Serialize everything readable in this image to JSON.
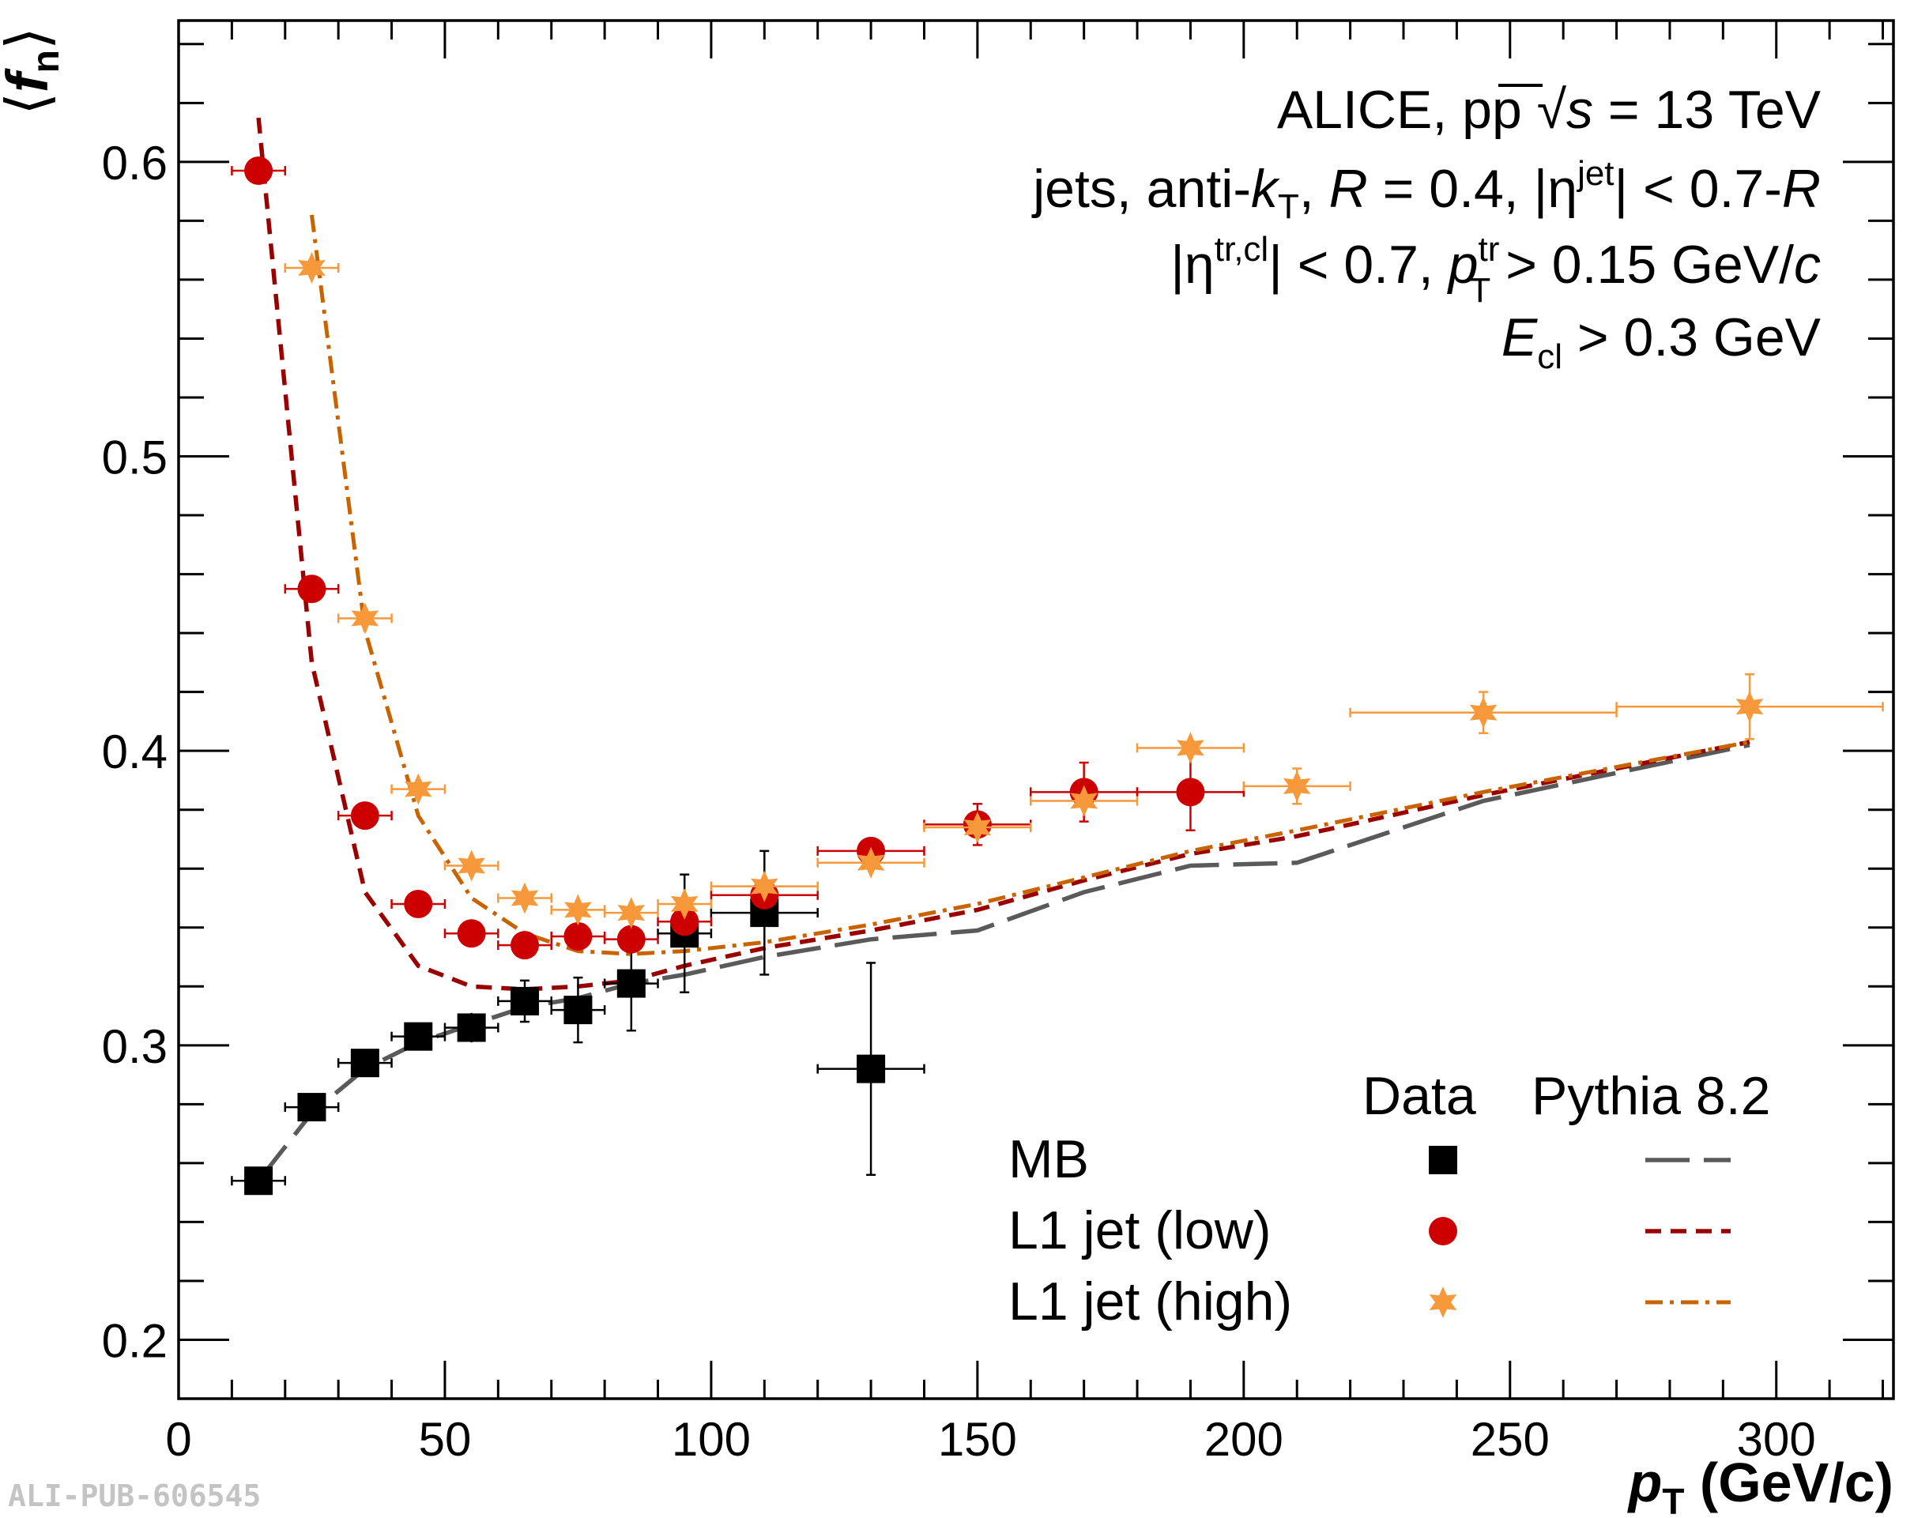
{
  "chart_data": {
    "type": "scatter",
    "title": "",
    "xlabel": "p_T (GeV/c)",
    "xlabel_main": "p",
    "xlabel_sub": "T",
    "xlabel_unit": "(GeV/c)",
    "ylabel": "⟨f_n⟩",
    "ylabel_main": "f",
    "ylabel_sub": "n",
    "xlim": [
      0,
      322
    ],
    "ylim": [
      0.18,
      0.648
    ],
    "x_ticks": [
      0,
      50,
      100,
      150,
      200,
      250,
      300
    ],
    "y_ticks": [
      0.2,
      0.3,
      0.4,
      0.5,
      0.6
    ],
    "grid": false,
    "annotations": {
      "line1_a": "ALICE, pp",
      "line1_b": "s",
      "line1_c": "= 13 TeV",
      "line2_a": "jets, anti-",
      "line2_k": "k",
      "line2_ksub": "T",
      "line2_b": ", ",
      "line2_R": "R",
      "line2_c": " = 0.4, |η",
      "line2_sup": "jet",
      "line2_d": "| < 0.7-",
      "line2_R2": "R",
      "line3_a": "|η",
      "line3_sup": "tr,cl",
      "line3_b": "| < 0.7, ",
      "line3_p": "p",
      "line3_psup": "tr",
      "line3_psub": "T",
      "line3_c": " > 0.15 GeV/",
      "line3_cc": "c",
      "line4_E": "E",
      "line4_sub": "cl",
      "line4_b": " > 0.3 GeV"
    },
    "legend": {
      "placement": "bottom-right",
      "header_data": "Data",
      "header_model": "Pythia 8.2",
      "entries": [
        "MB",
        "L1 jet (low)",
        "L1 jet (high)"
      ]
    },
    "footer_label": "ALI-PUB-606545",
    "colors": {
      "mb": "#000000",
      "low": "#cc0000",
      "high": "#f7993a",
      "pythia_mb": "#5a5a5a",
      "pythia_low": "#9b0000",
      "pythia_high": "#c86400"
    },
    "series": [
      {
        "name": "MB",
        "marker": "square",
        "points": [
          {
            "x": 15,
            "y": 0.254,
            "xerr": 5,
            "yerr": 0.002
          },
          {
            "x": 25,
            "y": 0.279,
            "xerr": 5,
            "yerr": 0.002
          },
          {
            "x": 35,
            "y": 0.294,
            "xerr": 5,
            "yerr": 0.003
          },
          {
            "x": 45,
            "y": 0.303,
            "xerr": 5,
            "yerr": 0.004
          },
          {
            "x": 55,
            "y": 0.306,
            "xerr": 5,
            "yerr": 0.005
          },
          {
            "x": 65,
            "y": 0.315,
            "xerr": 5,
            "yerr": 0.007
          },
          {
            "x": 75,
            "y": 0.312,
            "xerr": 5,
            "yerr": 0.011
          },
          {
            "x": 85,
            "y": 0.321,
            "xerr": 5,
            "yerr": 0.016
          },
          {
            "x": 95,
            "y": 0.338,
            "xerr": 5,
            "yerr": 0.02
          },
          {
            "x": 110,
            "y": 0.345,
            "xerr": 10,
            "yerr": 0.021
          },
          {
            "x": 130,
            "y": 0.292,
            "xerr": 10,
            "yerr": 0.036
          }
        ]
      },
      {
        "name": "L1 jet (low)",
        "marker": "circle",
        "points": [
          {
            "x": 15,
            "y": 0.597,
            "xerr": 5,
            "yerr": 0.002
          },
          {
            "x": 25,
            "y": 0.455,
            "xerr": 5,
            "yerr": 0.002
          },
          {
            "x": 35,
            "y": 0.378,
            "xerr": 5,
            "yerr": 0.002
          },
          {
            "x": 45,
            "y": 0.348,
            "xerr": 5,
            "yerr": 0.002
          },
          {
            "x": 55,
            "y": 0.338,
            "xerr": 5,
            "yerr": 0.002
          },
          {
            "x": 65,
            "y": 0.334,
            "xerr": 5,
            "yerr": 0.002
          },
          {
            "x": 75,
            "y": 0.337,
            "xerr": 5,
            "yerr": 0.002
          },
          {
            "x": 85,
            "y": 0.336,
            "xerr": 5,
            "yerr": 0.002
          },
          {
            "x": 95,
            "y": 0.342,
            "xerr": 5,
            "yerr": 0.003
          },
          {
            "x": 110,
            "y": 0.351,
            "xerr": 10,
            "yerr": 0.003
          },
          {
            "x": 130,
            "y": 0.366,
            "xerr": 10,
            "yerr": 0.004
          },
          {
            "x": 150,
            "y": 0.375,
            "xerr": 10,
            "yerr": 0.007
          },
          {
            "x": 170,
            "y": 0.386,
            "xerr": 10,
            "yerr": 0.01
          },
          {
            "x": 190,
            "y": 0.386,
            "xerr": 10,
            "yerr": 0.013
          }
        ]
      },
      {
        "name": "L1 jet (high)",
        "marker": "star",
        "points": [
          {
            "x": 25,
            "y": 0.564,
            "xerr": 5,
            "yerr": 0.002
          },
          {
            "x": 35,
            "y": 0.445,
            "xerr": 5,
            "yerr": 0.002
          },
          {
            "x": 45,
            "y": 0.387,
            "xerr": 5,
            "yerr": 0.002
          },
          {
            "x": 55,
            "y": 0.361,
            "xerr": 5,
            "yerr": 0.002
          },
          {
            "x": 65,
            "y": 0.35,
            "xerr": 5,
            "yerr": 0.002
          },
          {
            "x": 75,
            "y": 0.346,
            "xerr": 5,
            "yerr": 0.002
          },
          {
            "x": 85,
            "y": 0.345,
            "xerr": 5,
            "yerr": 0.002
          },
          {
            "x": 95,
            "y": 0.348,
            "xerr": 5,
            "yerr": 0.002
          },
          {
            "x": 110,
            "y": 0.354,
            "xerr": 10,
            "yerr": 0.002
          },
          {
            "x": 130,
            "y": 0.362,
            "xerr": 10,
            "yerr": 0.002
          },
          {
            "x": 150,
            "y": 0.374,
            "xerr": 10,
            "yerr": 0.002
          },
          {
            "x": 170,
            "y": 0.383,
            "xerr": 10,
            "yerr": 0.003
          },
          {
            "x": 190,
            "y": 0.401,
            "xerr": 10,
            "yerr": 0.004
          },
          {
            "x": 210,
            "y": 0.388,
            "xerr": 10,
            "yerr": 0.006
          },
          {
            "x": 245,
            "y": 0.413,
            "xerr": 25,
            "yerr": 0.007
          },
          {
            "x": 295,
            "y": 0.415,
            "xerr": 25,
            "yerr": 0.011
          }
        ]
      }
    ],
    "model_curves": [
      {
        "name": "Pythia 8.2 MB",
        "style": "long-dash",
        "points": [
          [
            15,
            0.254
          ],
          [
            25,
            0.277
          ],
          [
            35,
            0.292
          ],
          [
            45,
            0.301
          ],
          [
            55,
            0.307
          ],
          [
            65,
            0.313
          ],
          [
            75,
            0.316
          ],
          [
            85,
            0.321
          ],
          [
            95,
            0.324
          ],
          [
            110,
            0.33
          ],
          [
            130,
            0.336
          ],
          [
            150,
            0.339
          ],
          [
            170,
            0.352
          ],
          [
            190,
            0.361
          ],
          [
            210,
            0.362
          ],
          [
            245,
            0.383
          ],
          [
            295,
            0.402
          ]
        ]
      },
      {
        "name": "Pythia 8.2 L1 jet (low)",
        "style": "dash",
        "points": [
          [
            15,
            0.615
          ],
          [
            25,
            0.43
          ],
          [
            35,
            0.352
          ],
          [
            45,
            0.327
          ],
          [
            55,
            0.32
          ],
          [
            65,
            0.319
          ],
          [
            75,
            0.32
          ],
          [
            85,
            0.322
          ],
          [
            95,
            0.327
          ],
          [
            110,
            0.333
          ],
          [
            130,
            0.339
          ],
          [
            150,
            0.346
          ],
          [
            170,
            0.356
          ],
          [
            190,
            0.365
          ],
          [
            210,
            0.371
          ],
          [
            245,
            0.385
          ],
          [
            295,
            0.403
          ]
        ]
      },
      {
        "name": "Pythia 8.2 L1 jet (high)",
        "style": "dash-dot",
        "points": [
          [
            25,
            0.582
          ],
          [
            35,
            0.441
          ],
          [
            45,
            0.378
          ],
          [
            55,
            0.35
          ],
          [
            65,
            0.338
          ],
          [
            75,
            0.332
          ],
          [
            85,
            0.331
          ],
          [
            95,
            0.332
          ],
          [
            110,
            0.335
          ],
          [
            130,
            0.341
          ],
          [
            150,
            0.348
          ],
          [
            170,
            0.357
          ],
          [
            190,
            0.366
          ],
          [
            210,
            0.373
          ],
          [
            245,
            0.386
          ],
          [
            295,
            0.403
          ]
        ]
      }
    ]
  }
}
